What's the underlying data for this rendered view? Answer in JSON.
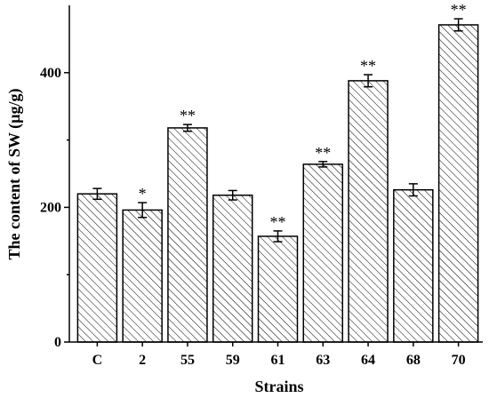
{
  "chart_data": {
    "type": "bar",
    "categories": [
      "C",
      "2",
      "55",
      "59",
      "61",
      "63",
      "64",
      "68",
      "70"
    ],
    "values": [
      220,
      196,
      318,
      218,
      157,
      264,
      388,
      226,
      471
    ],
    "errors": [
      8,
      11,
      5,
      7,
      8,
      4,
      9,
      9,
      9
    ],
    "significance": [
      "",
      "*",
      "**",
      "",
      "**",
      "**",
      "**",
      "",
      "**"
    ],
    "title": "",
    "xlabel": "Strains",
    "ylabel": "The content of SW (µg/g)",
    "ylim": [
      0,
      500
    ],
    "yticks": [
      0,
      200,
      400
    ],
    "bar_fill": "diagonal-hatch",
    "bar_color": "#000000",
    "grid": false,
    "legend": "none"
  }
}
